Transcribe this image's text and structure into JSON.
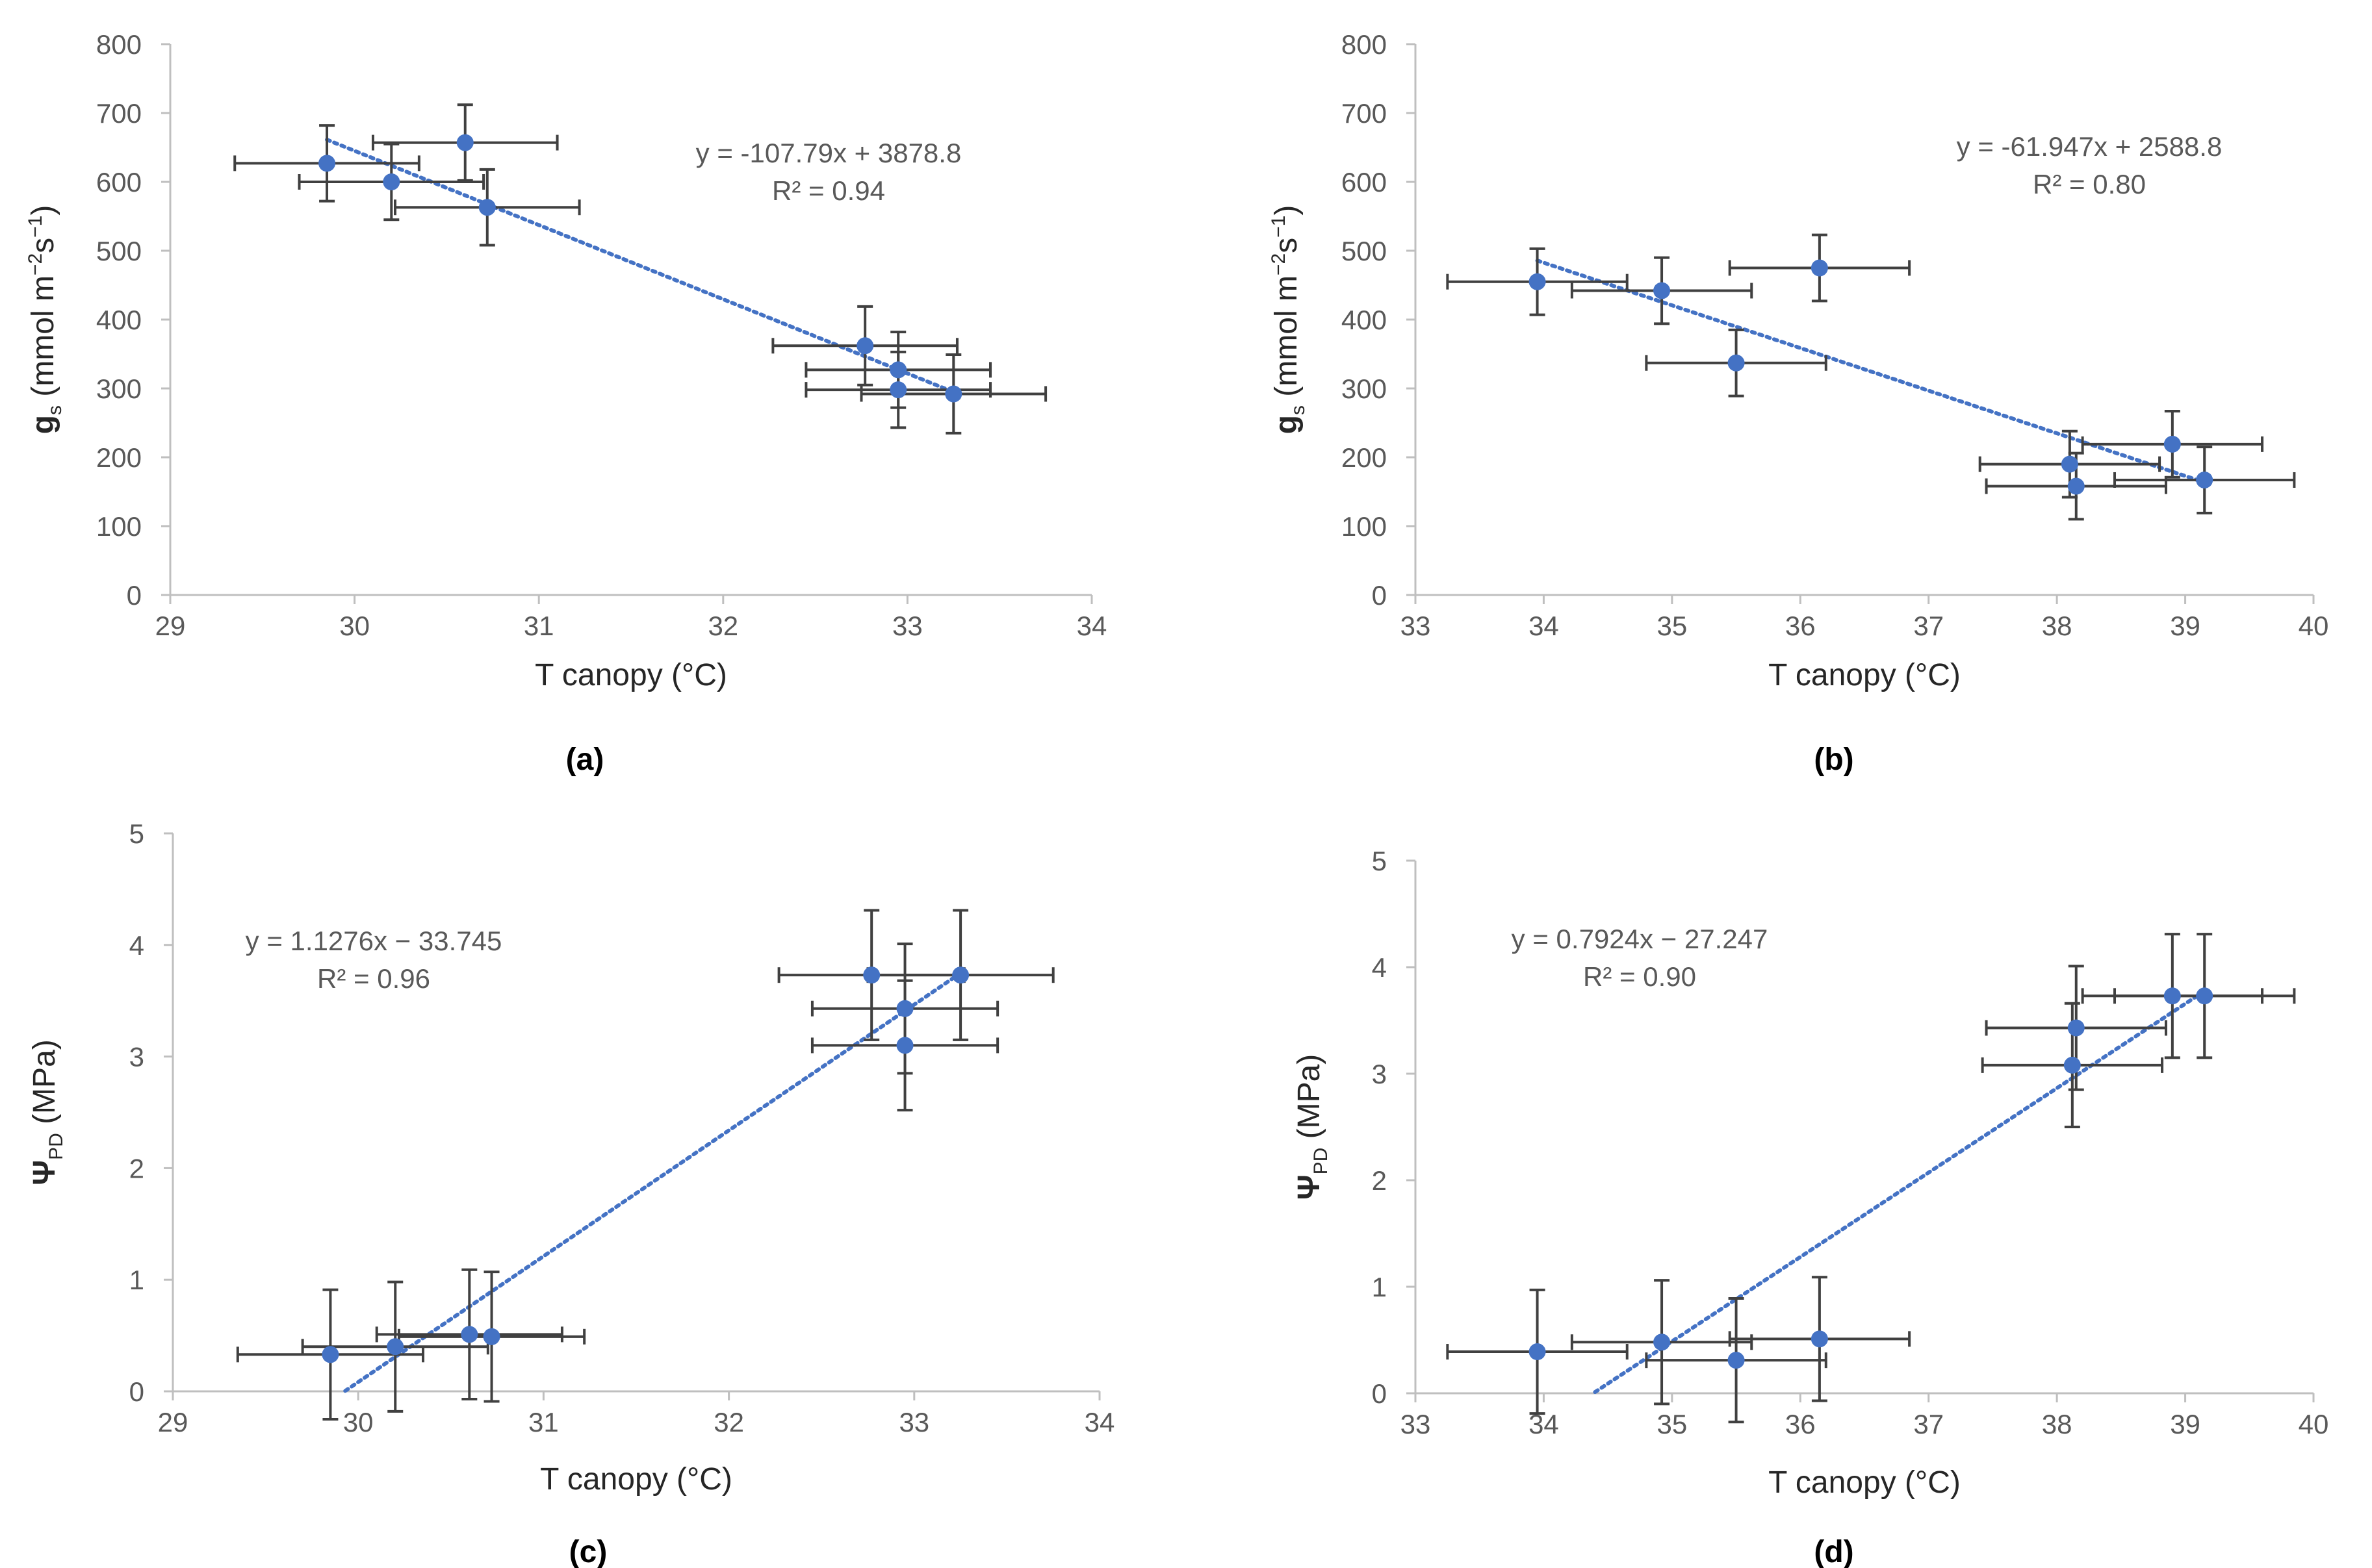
{
  "colors": {
    "marker": "#4472C4",
    "trend": "#4472C4",
    "errorbar": "#404040",
    "axis": "#BFBFBF",
    "tick_text": "#595959"
  },
  "chart_data": [
    {
      "id": "a",
      "type": "scatter",
      "caption": "(a)",
      "xlabel": "T canopy (°C)",
      "ylabel": {
        "main": "g",
        "sub": "s",
        "unit_pre": " (mmol m",
        "sup1": "−2",
        "mid": "s",
        "sup2": "−1",
        "unit_post": ")"
      },
      "xlim": [
        29,
        34
      ],
      "ylim": [
        0,
        800
      ],
      "xticks": [
        29,
        30,
        31,
        32,
        33,
        34
      ],
      "yticks": [
        0,
        100,
        200,
        300,
        400,
        500,
        600,
        700,
        800
      ],
      "x": [
        29.85,
        30.2,
        30.6,
        30.72,
        32.77,
        32.95,
        32.95,
        33.25
      ],
      "y": [
        627,
        600,
        657,
        563,
        362,
        327,
        298,
        292
      ],
      "xerr": [
        0.5,
        0.5,
        0.5,
        0.5,
        0.5,
        0.5,
        0.5,
        0.5
      ],
      "yerr": [
        55,
        55,
        55,
        55,
        57,
        55,
        55,
        57
      ],
      "trendline": {
        "slope": -107.79,
        "intercept": 3878.8,
        "x_range": [
          29.85,
          33.25
        ]
      },
      "equation": "y = -107.79x + 3878.8",
      "r2": "R² = 0.94"
    },
    {
      "id": "b",
      "type": "scatter",
      "caption": "(b)",
      "xlabel": "T canopy (°C)",
      "ylabel": {
        "main": "g",
        "sub": "s",
        "unit_pre": " (mmol m",
        "sup1": "−2",
        "mid": "s",
        "sup2": "−1",
        "unit_post": ")"
      },
      "xlim": [
        33,
        40
      ],
      "ylim": [
        0,
        800
      ],
      "xticks": [
        33,
        34,
        35,
        36,
        37,
        38,
        39,
        40
      ],
      "yticks": [
        0,
        100,
        200,
        300,
        400,
        500,
        600,
        700,
        800
      ],
      "x": [
        33.95,
        34.92,
        35.5,
        36.15,
        38.1,
        38.15,
        38.9,
        39.15
      ],
      "y": [
        455,
        442,
        337,
        475,
        190,
        158,
        219,
        167
      ],
      "xerr": [
        0.7,
        0.7,
        0.7,
        0.7,
        0.7,
        0.7,
        0.7,
        0.7
      ],
      "yerr": [
        48,
        48,
        48,
        48,
        48,
        48,
        48,
        48
      ],
      "trendline": {
        "slope": -61.947,
        "intercept": 2588.8,
        "x_range": [
          33.95,
          39.15
        ]
      },
      "equation": "y = -61.947x + 2588.8",
      "r2": "R² = 0.80"
    },
    {
      "id": "c",
      "type": "scatter",
      "caption": "(c)",
      "xlabel": "T canopy (°C)",
      "ylabel": {
        "main": "Ψ",
        "sub": "PD",
        "unit_pre": " (MPa)",
        "sup1": "",
        "mid": "",
        "sup2": "",
        "unit_post": ""
      },
      "xlim": [
        29,
        34
      ],
      "ylim": [
        0,
        5
      ],
      "xticks": [
        29,
        30,
        31,
        32,
        33,
        34
      ],
      "yticks": [
        0,
        1,
        2,
        3,
        4,
        5
      ],
      "x": [
        29.85,
        30.2,
        30.6,
        30.72,
        32.77,
        32.95,
        32.95,
        33.25
      ],
      "y": [
        0.33,
        0.4,
        0.51,
        0.49,
        3.73,
        3.43,
        3.1,
        3.73
      ],
      "xerr": [
        0.5,
        0.5,
        0.5,
        0.5,
        0.5,
        0.5,
        0.5,
        0.5
      ],
      "yerr": [
        0.58,
        0.58,
        0.58,
        0.58,
        0.58,
        0.58,
        0.58,
        0.58
      ],
      "trendline": {
        "slope": 1.1276,
        "intercept": -33.745,
        "x_range": [
          29.93,
          33.25
        ]
      },
      "equation": "y = 1.1276x − 33.745",
      "r2": "R² = 0.96"
    },
    {
      "id": "d",
      "type": "scatter",
      "caption": "(d)",
      "xlabel": "T canopy (°C)",
      "ylabel": {
        "main": "Ψ",
        "sub": "PD",
        "unit_pre": " (MPa)",
        "sup1": "",
        "mid": "",
        "sup2": "",
        "unit_post": ""
      },
      "xlim": [
        33,
        40
      ],
      "ylim": [
        0,
        5
      ],
      "xticks": [
        33,
        34,
        35,
        36,
        37,
        38,
        39,
        40
      ],
      "yticks": [
        0,
        1,
        2,
        3,
        4,
        5
      ],
      "x": [
        33.95,
        34.92,
        35.5,
        36.15,
        38.12,
        38.15,
        38.9,
        39.15
      ],
      "y": [
        0.39,
        0.48,
        0.31,
        0.51,
        3.08,
        3.43,
        3.73,
        3.73
      ],
      "xerr": [
        0.7,
        0.7,
        0.7,
        0.7,
        0.7,
        0.7,
        0.7,
        0.7
      ],
      "yerr": [
        0.58,
        0.58,
        0.58,
        0.58,
        0.58,
        0.58,
        0.58,
        0.58
      ],
      "trendline": {
        "slope": 0.7924,
        "intercept": -27.247,
        "x_range": [
          34.4,
          39.15
        ]
      },
      "equation": "y = 0.7924x − 27.247",
      "r2": "R² = 0.90"
    }
  ]
}
